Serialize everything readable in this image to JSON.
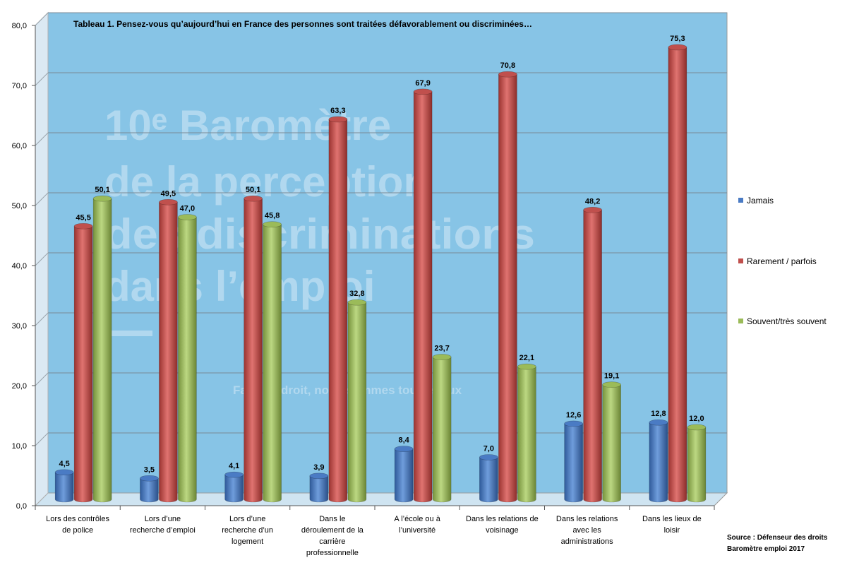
{
  "chart_data": {
    "type": "bar",
    "title": "Tableau 1. Pensez-vous qu’aujourd’hui en France des personnes sont traitées défavorablement ou discriminées…",
    "categories": [
      [
        "Lors des contrôles",
        "de police"
      ],
      [
        "Lors d’une",
        "recherche d’emploi"
      ],
      [
        "Lors d’une",
        "recherche d’un",
        "logement"
      ],
      [
        "Dans le",
        "déroulement de la",
        "carrière",
        "professionnelle"
      ],
      [
        "A l’école ou à",
        "l’université"
      ],
      [
        "Dans les relations de",
        "voisinage"
      ],
      [
        "Dans les relations",
        "avec les",
        "administrations"
      ],
      [
        "Dans les lieux de",
        "loisir"
      ]
    ],
    "series": [
      {
        "name": "Jamais",
        "color": "#4a7bc4",
        "values": [
          4.5,
          3.5,
          4.1,
          3.9,
          8.4,
          7.0,
          12.6,
          12.8
        ],
        "labels": [
          "4,5",
          "3,5",
          "4,1",
          "3,9",
          "8,4",
          "7,0",
          "12,6",
          "12,8"
        ]
      },
      {
        "name": "Rarement / parfois",
        "color": "#c0504d",
        "values": [
          45.5,
          49.5,
          50.1,
          63.3,
          67.9,
          70.8,
          48.2,
          75.3
        ],
        "labels": [
          "45,5",
          "49,5",
          "50,1",
          "63,3",
          "67,9",
          "70,8",
          "48,2",
          "75,3"
        ]
      },
      {
        "name": "Souvent/très souvent",
        "color": "#9bbb59",
        "values": [
          50.1,
          47.0,
          45.8,
          32.8,
          23.7,
          22.1,
          19.1,
          12.0
        ],
        "labels": [
          "50,1",
          "47,0",
          "45,8",
          "32,8",
          "23,7",
          "22,1",
          "19,1",
          "12,0"
        ]
      }
    ],
    "ylim": [
      0,
      80
    ],
    "yticks": [
      "0,0",
      "10,0",
      "20,0",
      "30,0",
      "40,0",
      "50,0",
      "60,0",
      "70,0",
      "80,0"
    ],
    "grid": true,
    "legend": "right",
    "plot_background": "#87c4e6"
  },
  "background_text": {
    "lines": [
      "10ᵉ Baromètre",
      "de la perception",
      "des discriminations",
      "dans l’emploi"
    ],
    "tagline": "Face au droit, nous sommes tous égaux"
  },
  "source": {
    "line1": "Source :  Défenseur des droits",
    "line2": "Baromètre emploi  2017"
  }
}
